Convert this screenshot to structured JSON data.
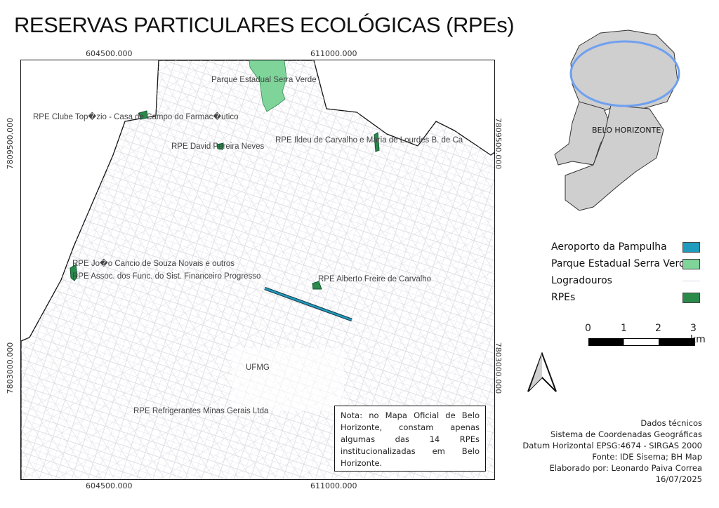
{
  "title": "RESERVAS PARTICULARES ECOLÓGICAS (RPEs)",
  "coords": {
    "x_left": "604500.000",
    "x_right": "611000.000",
    "y_top": "7809500.000",
    "y_bottom": "7803000.000"
  },
  "map_labels": {
    "parque": "Parque Estadual Serra Verde",
    "topazio": "RPE Clube Top�zio - Casa de Campo do Farmac�utico",
    "david": "RPE David Pereira Neves",
    "ildeu": "RPE Ildeu de Carvalho e Maria de Lourdes B. de Ca",
    "joao": "RPE Jo�o Cancio de Souza Novais e outros",
    "assoc": "RPE Assoc. dos Func. do Sist. Financeiro Progresso",
    "alberto": "RPE Alberto Freire de Carvalho",
    "ufmg": "UFMG",
    "refrigerantes": "RPE Refrigerantes Minas Gerais Ltda"
  },
  "note": "Nota: no Mapa Oficial de Belo Horizonte, constam apenas algumas das 14 RPEs institucionalizadas em Belo Horizonte.",
  "inset": {
    "label": "BELO HORIZONTE"
  },
  "legend": [
    {
      "label": "Aeroporto da Pampulha",
      "color": "#1f9bbd"
    },
    {
      "label": "Parque Estadual Serra Verde",
      "color": "#7fd49a"
    },
    {
      "label": "Logradouros",
      "color": "#d8d8e6"
    },
    {
      "label": "RPEs",
      "color": "#2a8a4a"
    }
  ],
  "scale": {
    "ticks": [
      "0",
      "1",
      "2",
      "3 km"
    ]
  },
  "tech": [
    "Dados técnicos",
    "Sistema de Coordenadas Geográficas",
    "Datum Horizontal EPSG:4674 - SIRGAS 2000",
    "Fonte: IDE Sisema; BH Map",
    "Elaborado por: Leonardo Paiva Correa",
    "16/07/2025"
  ]
}
